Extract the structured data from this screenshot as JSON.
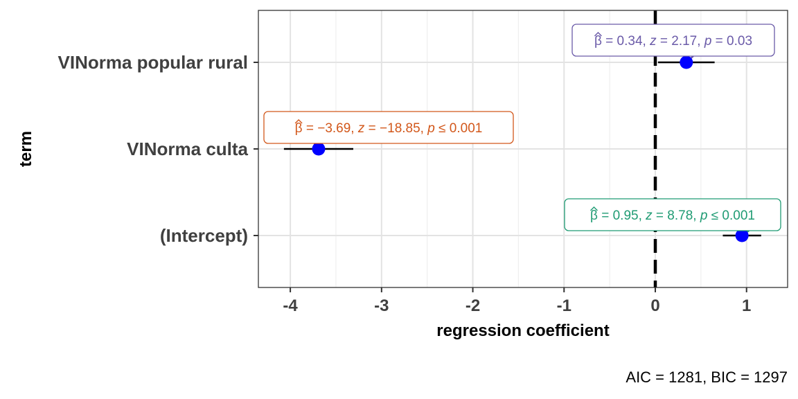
{
  "chart_data": {
    "type": "scatter",
    "title": "",
    "xlabel": "regression coefficient",
    "ylabel": "term",
    "xlim": [
      -4.35,
      1.45
    ],
    "x_ticks": [
      -4,
      -3,
      -2,
      -1,
      0,
      1
    ],
    "x_tick_labels": [
      "-4",
      "-3",
      "-2",
      "-1",
      "0",
      "1"
    ],
    "reference_line": 0,
    "grid": true,
    "caption": "AIC = 1281, BIC = 1297",
    "terms": [
      {
        "term": "VINorma popular rural",
        "estimate": 0.34,
        "conf_low": 0.03,
        "conf_high": 0.65,
        "label_color": "#6A5AA8",
        "label": {
          "beta": "0.34",
          "z": "2.17",
          "p_op": "=",
          "p": "0.03"
        }
      },
      {
        "term": "VINorma culta",
        "estimate": -3.69,
        "conf_low": -4.07,
        "conf_high": -3.31,
        "label_color": "#D2571A",
        "label": {
          "beta": "−3.69",
          "z": "−18.85",
          "p_op": "≤",
          "p": "0.001"
        }
      },
      {
        "term": "(Intercept)",
        "estimate": 0.95,
        "conf_low": 0.74,
        "conf_high": 1.16,
        "label_color": "#1F9B73",
        "label": {
          "beta": "0.95",
          "z": "8.78",
          "p_op": "≤",
          "p": "0.001"
        }
      }
    ],
    "point_color": "#0000FF"
  }
}
